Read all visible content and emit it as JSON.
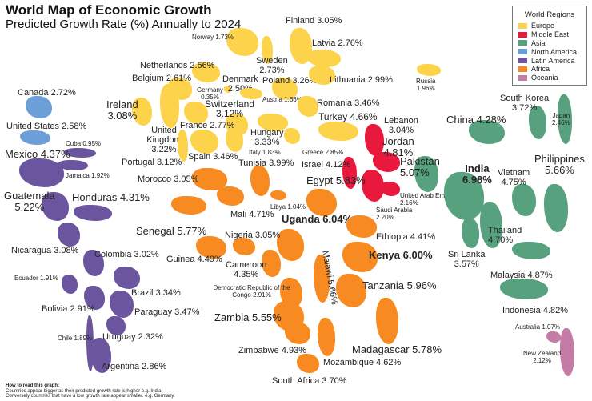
{
  "title": "World Map of Economic Growth",
  "subtitle": "Predicted Growth Rate (%) Annually to 2024",
  "legend": {
    "title": "World Regions",
    "items": [
      {
        "label": "Europe",
        "color": "#FDD34B"
      },
      {
        "label": "Middle East",
        "color": "#E8193C"
      },
      {
        "label": "Asia",
        "color": "#57A17F"
      },
      {
        "label": "North America",
        "color": "#6C9FD8"
      },
      {
        "label": "Latin America",
        "color": "#6B559E"
      },
      {
        "label": "Africa",
        "color": "#F78A20"
      },
      {
        "label": "Oceania",
        "color": "#C47BA6"
      }
    ]
  },
  "countries": [
    {
      "name": "Finland",
      "growth": "3.05%",
      "region": "Europe"
    },
    {
      "name": "Norway",
      "growth": "1.73%",
      "region": "Europe"
    },
    {
      "name": "Latvia",
      "growth": "2.76%",
      "region": "Europe"
    },
    {
      "name": "Sweden",
      "growth": "2.73%",
      "region": "Europe"
    },
    {
      "name": "Netherlands",
      "growth": "2.56%",
      "region": "Europe"
    },
    {
      "name": "Belgium",
      "growth": "2.61%",
      "region": "Europe"
    },
    {
      "name": "Denmark",
      "growth": "2.50%",
      "region": "Europe"
    },
    {
      "name": "Poland",
      "growth": "3.26%",
      "region": "Europe"
    },
    {
      "name": "Lithuania",
      "growth": "2.99%",
      "region": "Europe"
    },
    {
      "name": "Germany",
      "growth": "0.35%",
      "region": "Europe"
    },
    {
      "name": "Austria",
      "growth": "1.66%",
      "region": "Europe"
    },
    {
      "name": "Ireland",
      "growth": "3.08%",
      "region": "Europe"
    },
    {
      "name": "Switzerland",
      "growth": "3.12%",
      "region": "Europe"
    },
    {
      "name": "Romania",
      "growth": "3.46%",
      "region": "Europe"
    },
    {
      "name": "United Kingdom",
      "growth": "3.22%",
      "region": "Europe"
    },
    {
      "name": "France",
      "growth": "2.77%",
      "region": "Europe"
    },
    {
      "name": "Hungary",
      "growth": "3.33%",
      "region": "Europe"
    },
    {
      "name": "Turkey",
      "growth": "4.66%",
      "region": "Europe"
    },
    {
      "name": "Spain",
      "growth": "3.46%",
      "region": "Europe"
    },
    {
      "name": "Portugal",
      "growth": "3.12%",
      "region": "Europe"
    },
    {
      "name": "Italy",
      "growth": "1.83%",
      "region": "Europe"
    },
    {
      "name": "Greece",
      "growth": "2.85%",
      "region": "Europe"
    },
    {
      "name": "Russia",
      "growth": "1.96%",
      "region": "Europe"
    },
    {
      "name": "Lebanon",
      "growth": "3.04%",
      "region": "Middle East"
    },
    {
      "name": "Jordan",
      "growth": "4.81%",
      "region": "Middle East"
    },
    {
      "name": "Israel",
      "growth": "4.12%",
      "region": "Middle East"
    },
    {
      "name": "Saudi Arabia",
      "growth": "2.20%",
      "region": "Middle East"
    },
    {
      "name": "United Arab Emirates",
      "growth": "2.16%",
      "region": "Middle East"
    },
    {
      "name": "Pakistan",
      "growth": "5.07%",
      "region": "Asia"
    },
    {
      "name": "South Korea",
      "growth": "3.72%",
      "region": "Asia"
    },
    {
      "name": "Japan",
      "growth": "2.46%",
      "region": "Asia"
    },
    {
      "name": "China",
      "growth": "4.28%",
      "region": "Asia"
    },
    {
      "name": "Philippines",
      "growth": "5.66%",
      "region": "Asia"
    },
    {
      "name": "India",
      "growth": "6.98%",
      "region": "Asia"
    },
    {
      "name": "Vietnam",
      "growth": "4.75%",
      "region": "Asia"
    },
    {
      "name": "Thailand",
      "growth": "4.70%",
      "region": "Asia"
    },
    {
      "name": "Sri Lanka",
      "growth": "3.57%",
      "region": "Asia"
    },
    {
      "name": "Malaysia",
      "growth": "4.87%",
      "region": "Asia"
    },
    {
      "name": "Indonesia",
      "growth": "4.82%",
      "region": "Asia"
    },
    {
      "name": "Australia",
      "growth": "1.07%",
      "region": "Oceania"
    },
    {
      "name": "New Zealand",
      "growth": "2.12%",
      "region": "Oceania"
    },
    {
      "name": "Canada",
      "growth": "2.72%",
      "region": "North America"
    },
    {
      "name": "United States",
      "growth": "2.58%",
      "region": "North America"
    },
    {
      "name": "Cuba",
      "growth": "0.95%",
      "region": "Latin America"
    },
    {
      "name": "Mexico",
      "growth": "4.37%",
      "region": "Latin America"
    },
    {
      "name": "Jamaica",
      "growth": "1.92%",
      "region": "Latin America"
    },
    {
      "name": "Guatemala",
      "growth": "5.22%",
      "region": "Latin America"
    },
    {
      "name": "Honduras",
      "growth": "4.31%",
      "region": "Latin America"
    },
    {
      "name": "Nicaragua",
      "growth": "3.08%",
      "region": "Latin America"
    },
    {
      "name": "Colombia",
      "growth": "3.02%",
      "region": "Latin America"
    },
    {
      "name": "Ecuador",
      "growth": "1.91%",
      "region": "Latin America"
    },
    {
      "name": "Brazil",
      "growth": "3.34%",
      "region": "Latin America"
    },
    {
      "name": "Bolivia",
      "growth": "2.91%",
      "region": "Latin America"
    },
    {
      "name": "Paraguay",
      "growth": "3.47%",
      "region": "Latin America"
    },
    {
      "name": "Chile",
      "growth": "1.89%",
      "region": "Latin America"
    },
    {
      "name": "Uruguay",
      "growth": "2.32%",
      "region": "Latin America"
    },
    {
      "name": "Argentina",
      "growth": "2.86%",
      "region": "Latin America"
    },
    {
      "name": "Morocco",
      "growth": "3.05%",
      "region": "Africa"
    },
    {
      "name": "Tunisia",
      "growth": "3.99%",
      "region": "Africa"
    },
    {
      "name": "Egypt",
      "growth": "5.83%",
      "region": "Africa"
    },
    {
      "name": "Libya",
      "growth": "1.04%",
      "region": "Africa"
    },
    {
      "name": "Mali",
      "growth": "4.71%",
      "region": "Africa"
    },
    {
      "name": "Uganda",
      "growth": "6.04%",
      "region": "Africa"
    },
    {
      "name": "Senegal",
      "growth": "5.77%",
      "region": "Africa"
    },
    {
      "name": "Nigeria",
      "growth": "3.05%",
      "region": "Africa"
    },
    {
      "name": "Ethiopia",
      "growth": "4.41%",
      "region": "Africa"
    },
    {
      "name": "Guinea",
      "growth": "4.49%",
      "region": "Africa"
    },
    {
      "name": "Kenya",
      "growth": "6.00%",
      "region": "Africa"
    },
    {
      "name": "Malawi",
      "growth": "5.66%",
      "region": "Africa"
    },
    {
      "name": "Cameroon",
      "growth": "4.35%",
      "region": "Africa"
    },
    {
      "name": "Tanzania",
      "growth": "5.96%",
      "region": "Africa"
    },
    {
      "name": "Democratic Republic of the Congo",
      "growth": "2.91%",
      "region": "Africa"
    },
    {
      "name": "Zambia",
      "growth": "5.55%",
      "region": "Africa"
    },
    {
      "name": "Madagascar",
      "growth": "5.78%",
      "region": "Africa"
    },
    {
      "name": "Zimbabwe",
      "growth": "4.93%",
      "region": "Africa"
    },
    {
      "name": "Mozambique",
      "growth": "4.62%",
      "region": "Africa"
    },
    {
      "name": "South Africa",
      "growth": "3.70%",
      "region": "Africa"
    }
  ],
  "footnote": {
    "heading": "How to read this graph:",
    "line1": "Countries appear bigger as their predicted growth rate is higher e.g. India.",
    "line2": "Conversely countries that have a low growth rate appear smaller. e.g. Germany."
  }
}
